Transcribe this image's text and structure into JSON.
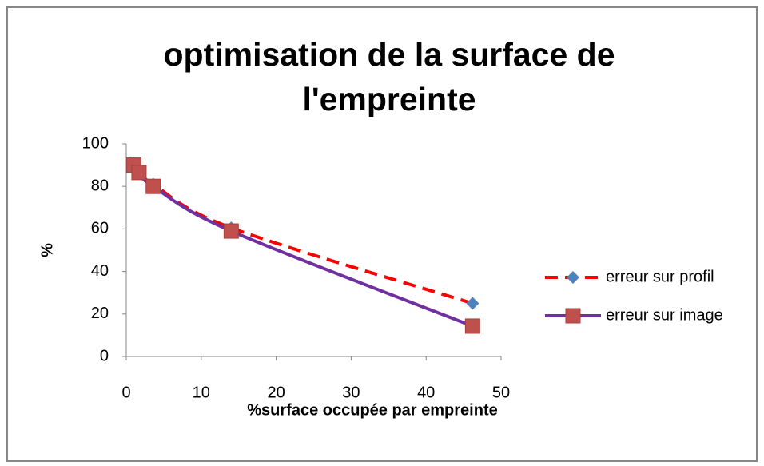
{
  "chart_data": {
    "type": "scatter",
    "title": "optimisation de la surface de l'empreinte",
    "x_label": "%surface occupée par empreinte",
    "y_label": "%",
    "xlim": [
      0,
      50
    ],
    "xticks": [
      0,
      10,
      20,
      30,
      40,
      50
    ],
    "ylim": [
      0,
      100
    ],
    "yticks": [
      0,
      20,
      40,
      60,
      80,
      100
    ],
    "grid": false,
    "legend": "right",
    "series": [
      {
        "name": "erreur sur profil",
        "color": "#ff0000",
        "marker_color": "#4f81bd",
        "marker": "diamond",
        "dash": true,
        "x": [
          1,
          1.7,
          3.6,
          14,
          46.2
        ],
        "values": [
          91,
          87,
          81,
          60.5,
          25
        ]
      },
      {
        "name": "erreur sur image",
        "color": "#7030a0",
        "marker_color": "#c0504d",
        "marker": "square",
        "dash": false,
        "x": [
          1,
          1.7,
          3.6,
          14,
          46.2
        ],
        "values": [
          90,
          86.5,
          80,
          59,
          14.3
        ]
      }
    ]
  }
}
